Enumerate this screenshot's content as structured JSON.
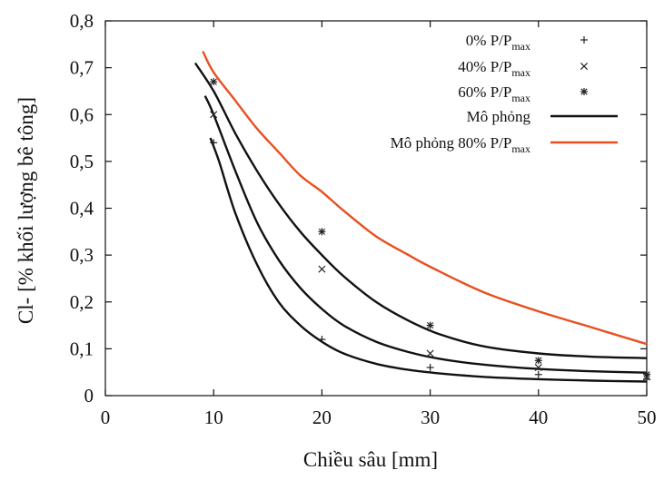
{
  "chart_data": {
    "type": "line",
    "xlabel": "Chiều sâu [mm]",
    "ylabel": "Cl- [% khối lượng bê tông]",
    "xlim": [
      0,
      50
    ],
    "ylim": [
      0,
      0.8
    ],
    "x_ticks": [
      0,
      10,
      20,
      30,
      40,
      50
    ],
    "x_tick_labels": [
      "0",
      "10",
      "20",
      "30",
      "40",
      "50"
    ],
    "y_ticks": [
      0,
      0.1,
      0.2,
      0.3,
      0.4,
      0.5,
      0.6,
      0.7,
      0.8
    ],
    "y_tick_labels": [
      "0",
      "0,1",
      "0,2",
      "0,3",
      "0,4",
      "0,5",
      "0,6",
      "0,7",
      "0,8"
    ],
    "grid": false,
    "legend_position": "top-right",
    "colors": {
      "sim": "#111111",
      "sim80": "#e8501f",
      "marker": "#222222"
    },
    "series": [
      {
        "name": "0% P/Pmax",
        "label_main": "0% P/P",
        "label_sub": "max",
        "kind": "scatter",
        "marker": "plus",
        "x": [
          10,
          20,
          30,
          40,
          50
        ],
        "y": [
          0.54,
          0.12,
          0.06,
          0.045,
          0.035
        ]
      },
      {
        "name": "40% P/Pmax",
        "label_main": "40% P/P",
        "label_sub": "max",
        "kind": "scatter",
        "marker": "cross",
        "x": [
          10,
          20,
          30,
          40,
          50
        ],
        "y": [
          0.6,
          0.27,
          0.09,
          0.06,
          0.04
        ]
      },
      {
        "name": "60% P/Pmax",
        "label_main": "60% P/P",
        "label_sub": "max",
        "kind": "scatter",
        "marker": "star",
        "x": [
          10,
          20,
          30,
          40,
          50
        ],
        "y": [
          0.67,
          0.35,
          0.15,
          0.075,
          0.045
        ]
      },
      {
        "name": "Mô phỏng",
        "label_main": "Mô phỏng",
        "label_sub": "",
        "kind": "line",
        "color": "#111111",
        "curves": [
          {
            "x": [
              9.7,
              10.5,
              12,
              14,
              16,
              18,
              20,
              22,
              25,
              28,
              31,
              35,
              40,
              45,
              50
            ],
            "y": [
              0.55,
              0.5,
              0.39,
              0.28,
              0.2,
              0.15,
              0.115,
              0.09,
              0.068,
              0.055,
              0.047,
              0.04,
              0.035,
              0.032,
              0.03
            ]
          },
          {
            "x": [
              9.2,
              10,
              12,
              14,
              16,
              18,
              20,
              22,
              25,
              28,
              31,
              35,
              40,
              45,
              50
            ],
            "y": [
              0.64,
              0.6,
              0.48,
              0.37,
              0.29,
              0.23,
              0.185,
              0.15,
              0.115,
              0.093,
              0.078,
              0.066,
              0.057,
              0.052,
              0.049
            ]
          },
          {
            "x": [
              8.3,
              10,
              12,
              14,
              16,
              18,
              20,
              22,
              25,
              28,
              31,
              35,
              40,
              45,
              50
            ],
            "y": [
              0.71,
              0.65,
              0.56,
              0.48,
              0.41,
              0.35,
              0.3,
              0.255,
              0.2,
              0.16,
              0.13,
              0.105,
              0.09,
              0.083,
              0.08
            ]
          }
        ]
      },
      {
        "name": "Mô phỏng 80% P/Pmax",
        "label_main": "Mô phỏng 80% P/P",
        "label_sub": "max",
        "kind": "line",
        "color": "#e8501f",
        "curves": [
          {
            "x": [
              9,
              10,
              12,
              14,
              16,
              18,
              20,
              22,
              25,
              28,
              30,
              35,
              40,
              45,
              50
            ],
            "y": [
              0.735,
              0.69,
              0.63,
              0.57,
              0.52,
              0.47,
              0.435,
              0.395,
              0.34,
              0.3,
              0.275,
              0.22,
              0.18,
              0.145,
              0.11
            ]
          }
        ]
      }
    ]
  }
}
